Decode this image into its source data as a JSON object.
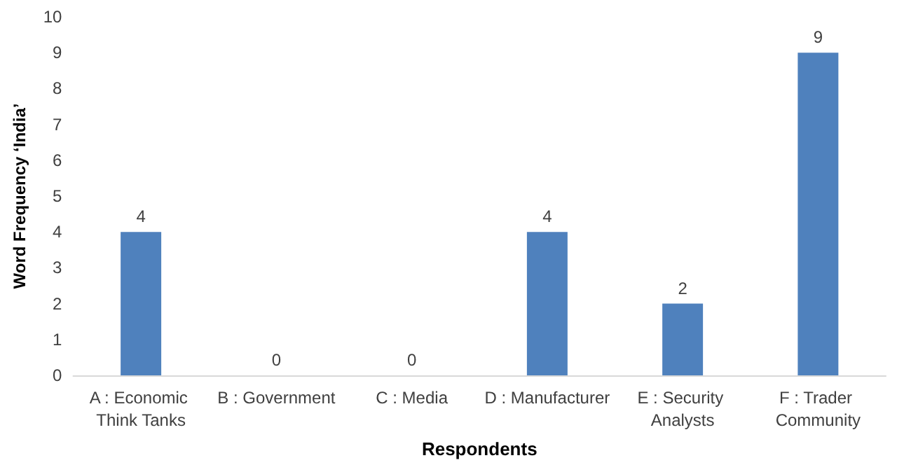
{
  "chart_data": {
    "type": "bar",
    "xlabel": "Respondents",
    "ylabel": "Word Frequency ‘India’",
    "categories": [
      "A : Economic Think Tanks",
      "B : Government",
      "C : Media",
      "D : Manufacturer",
      "E : Security Analysts",
      "F : Trader Community"
    ],
    "values": [
      4,
      0,
      0,
      4,
      2,
      9
    ],
    "color": "#4f81bd",
    "ylim": [
      0,
      10
    ],
    "yticks": [
      0,
      1,
      2,
      3,
      4,
      5,
      6,
      7,
      8,
      9,
      10
    ],
    "grid": false,
    "data_labels": true
  }
}
